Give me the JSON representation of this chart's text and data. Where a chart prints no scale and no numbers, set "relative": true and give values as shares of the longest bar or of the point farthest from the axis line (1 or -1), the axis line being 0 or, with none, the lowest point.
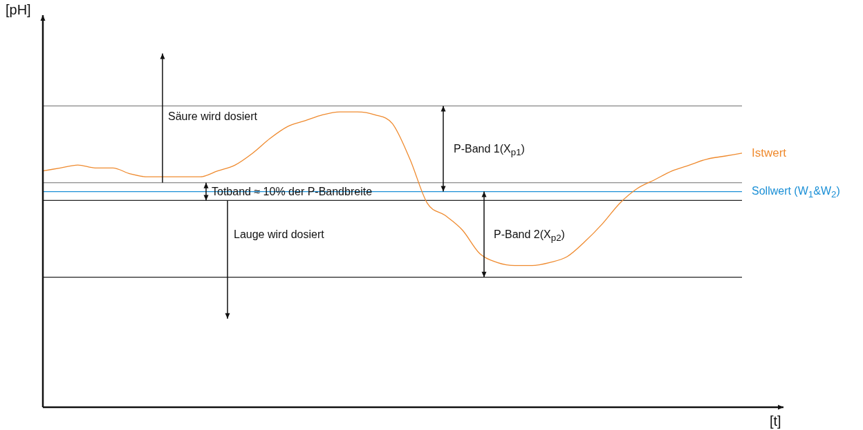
{
  "chart_data": {
    "type": "line",
    "relative": true,
    "xlabel": "[t]",
    "marker": "none",
    "line_style": "solid",
    "legend": false,
    "categories": [
      null,
      null,
      null,
      null,
      null,
      null,
      null,
      null,
      null,
      null,
      null,
      null,
      null,
      null,
      null,
      null,
      null,
      null,
      null,
      null,
      null,
      null,
      null,
      null,
      null,
      null,
      null,
      null,
      null,
      null,
      null,
      null,
      null,
      null,
      null,
      null,
      null,
      null,
      null,
      null,
      null
    ],
    "series": [
      {
        "name": "Istwert",
        "color": "#ef8a2e",
        "values": [
          0.8,
          0.81,
          0.82,
          0.81,
          0.81,
          0.79,
          0.78,
          0.78,
          0.78,
          0.78,
          0.8,
          0.82,
          0.86,
          0.91,
          0.95,
          0.97,
          0.99,
          1.0,
          1.0,
          0.99,
          0.96,
          0.84,
          0.69,
          0.65,
          0.6,
          0.52,
          0.49,
          0.48,
          0.48,
          0.49,
          0.51,
          0.56,
          0.62,
          0.69,
          0.74,
          0.77,
          0.8,
          0.82,
          0.84,
          0.85,
          0.86
        ]
      }
    ],
    "ref_lines": [
      {
        "axis": "y",
        "value": 1.02,
        "color": "#6e6e6e"
      },
      {
        "axis": "y",
        "value": 0.76,
        "color": "#6e6e6e"
      },
      {
        "axis": "y",
        "value": 0.73,
        "label": "Sollwert (W$_{1}$&W$_{2}$)",
        "color": "#1a8fd6"
      },
      {
        "axis": "y",
        "value": 0.7,
        "color": "#222222"
      },
      {
        "axis": "y",
        "value": 0.44,
        "color": "#222222"
      }
    ],
    "annotations": [
      "Säure wird dosiert",
      "Totband ≈ 10% der P-Bandbreite",
      "Lauge wird dosiert",
      "P-Band 1(X$_{p1}$)",
      "P-Band 2(X$_{p2}$)",
      "[pH]"
    ]
  }
}
